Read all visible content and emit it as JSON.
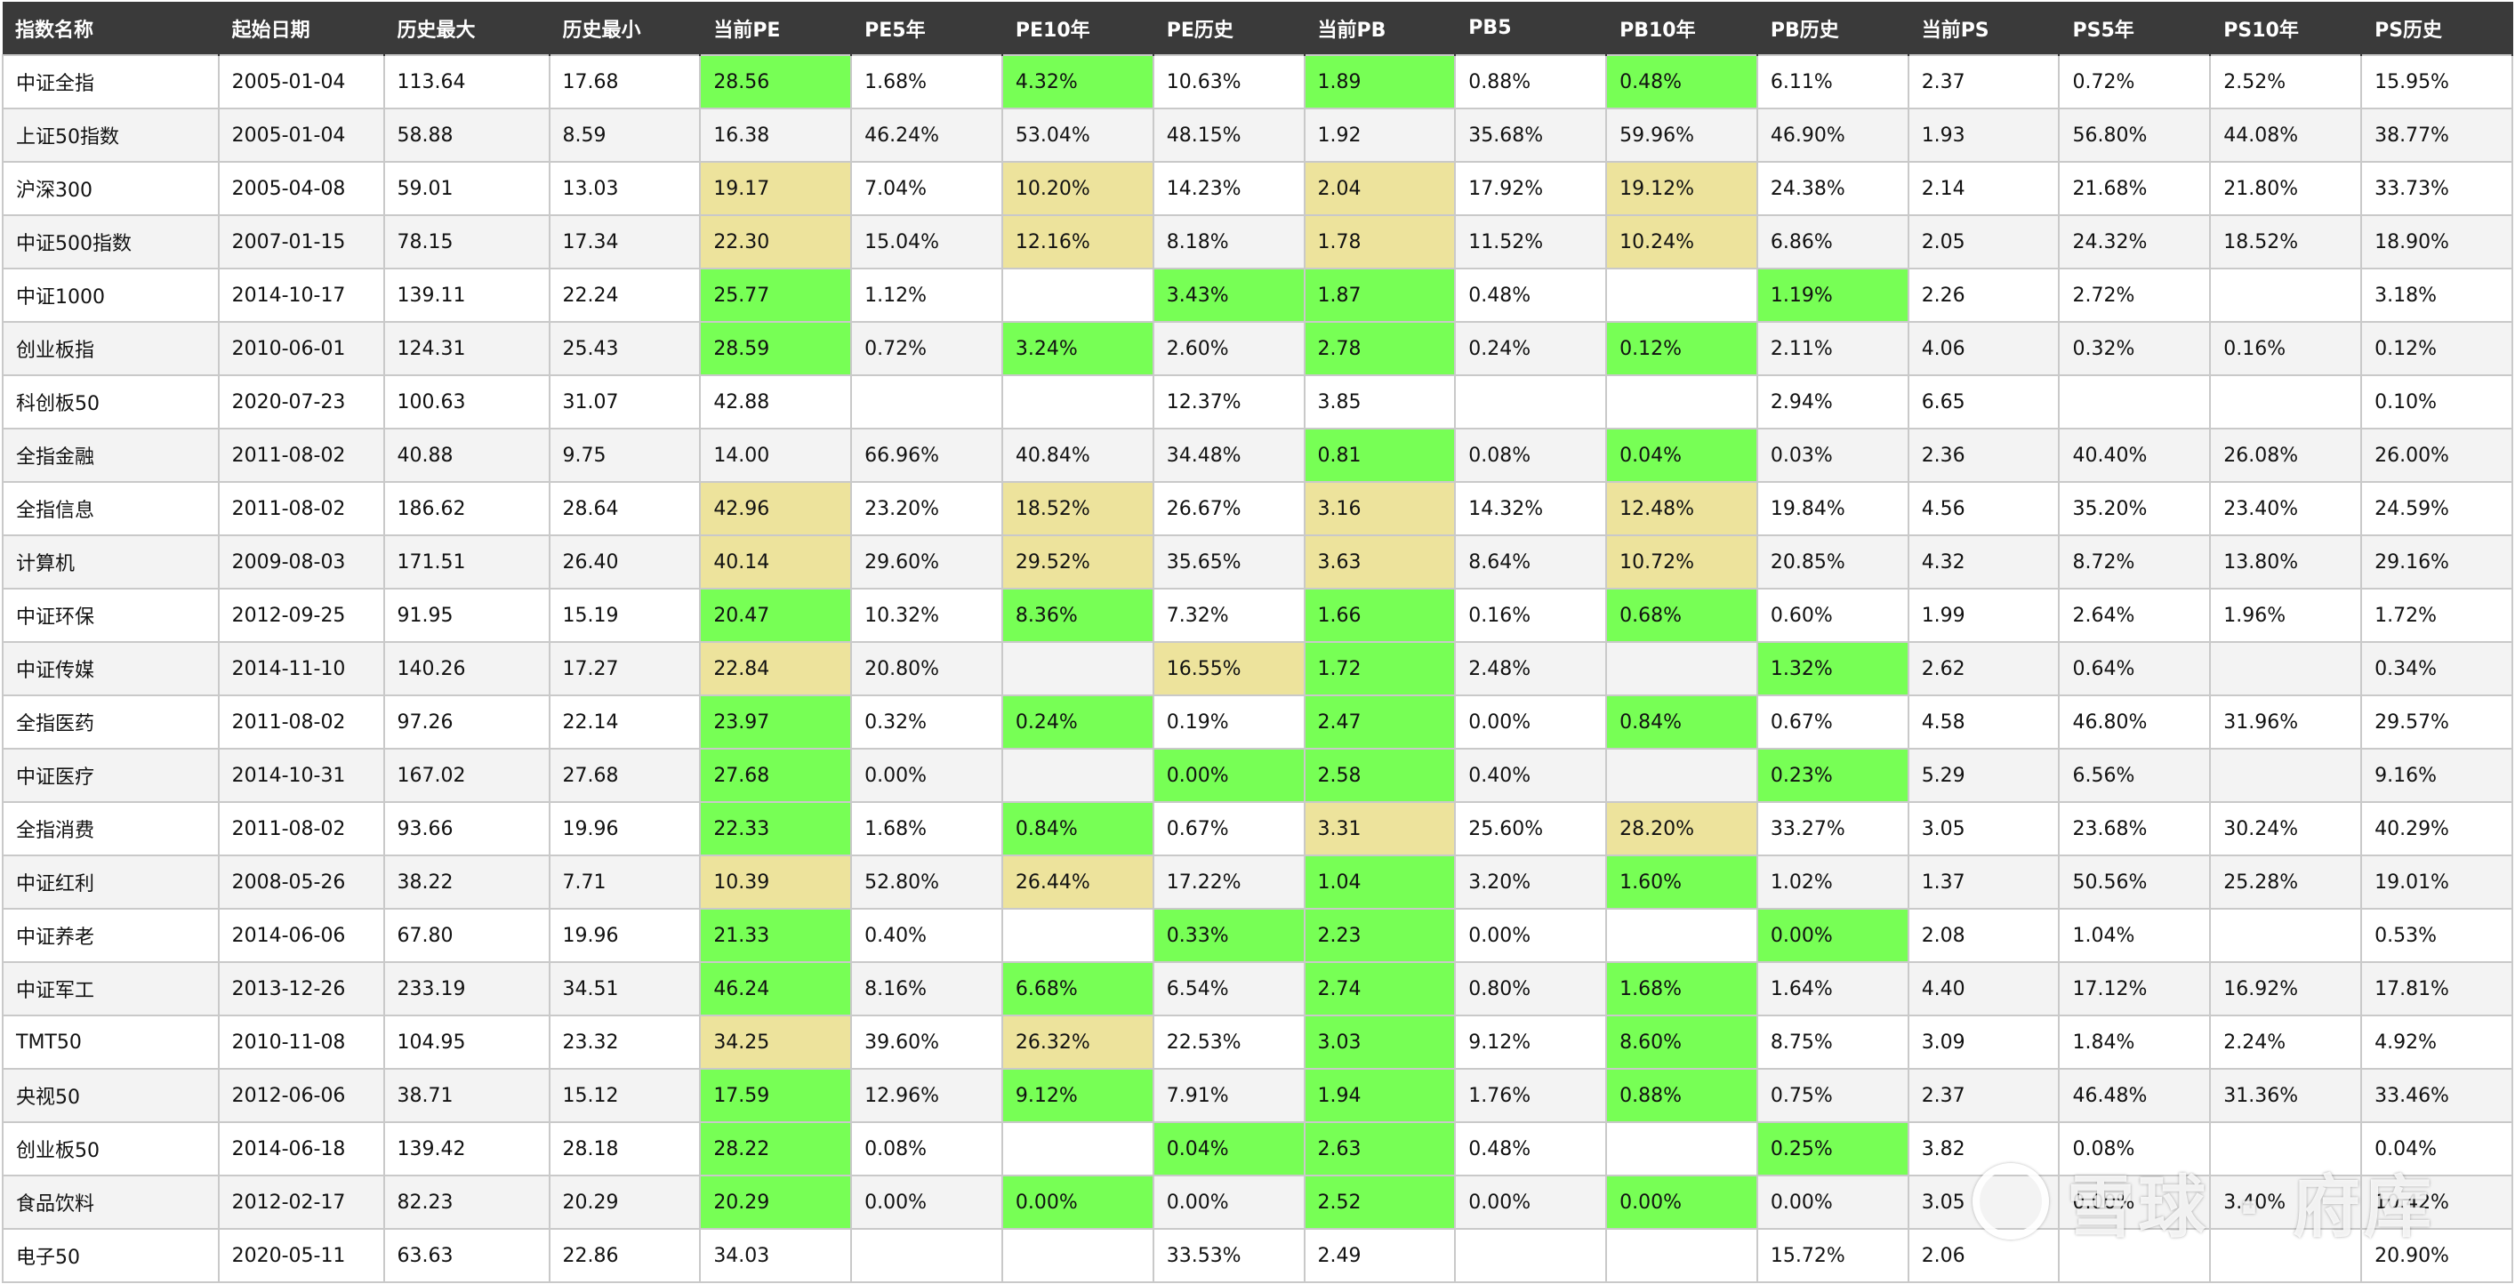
{
  "headers": [
    "指数名称",
    "起始日期",
    "历史最大",
    "历史最小",
    "当前PE",
    "PE5年",
    "PE10年",
    "PE历史",
    "当前PB",
    "PB5",
    "PB10年",
    "PB历史",
    "当前PS",
    "PS5年",
    "PS10年",
    "PS历史"
  ],
  "rows": [
    {
      "cells": [
        "中证全指",
        "2005-01-04",
        "113.64",
        "17.68",
        "28.56",
        "1.68%",
        "4.32%",
        "10.63%",
        "1.89",
        "0.88%",
        "0.48%",
        "6.11%",
        "2.37",
        "0.72%",
        "2.52%",
        "15.95%"
      ],
      "hl": {
        "4": "g",
        "6": "g",
        "8": "g",
        "10": "g"
      }
    },
    {
      "cells": [
        "上证50指数",
        "2005-01-04",
        "58.88",
        "8.59",
        "16.38",
        "46.24%",
        "53.04%",
        "48.15%",
        "1.92",
        "35.68%",
        "59.96%",
        "46.90%",
        "1.93",
        "56.80%",
        "44.08%",
        "38.77%"
      ],
      "hl": {}
    },
    {
      "cells": [
        "沪深300",
        "2005-04-08",
        "59.01",
        "13.03",
        "19.17",
        "7.04%",
        "10.20%",
        "14.23%",
        "2.04",
        "17.92%",
        "19.12%",
        "24.38%",
        "2.14",
        "21.68%",
        "21.80%",
        "33.73%"
      ],
      "hl": {
        "4": "y",
        "6": "y",
        "8": "y",
        "10": "y"
      }
    },
    {
      "cells": [
        "中证500指数",
        "2007-01-15",
        "78.15",
        "17.34",
        "22.30",
        "15.04%",
        "12.16%",
        "8.18%",
        "1.78",
        "11.52%",
        "10.24%",
        "6.86%",
        "2.05",
        "24.32%",
        "18.52%",
        "18.90%"
      ],
      "hl": {
        "4": "y",
        "6": "y",
        "8": "y",
        "10": "y"
      }
    },
    {
      "cells": [
        "中证1000",
        "2014-10-17",
        "139.11",
        "22.24",
        "25.77",
        "1.12%",
        "",
        "3.43%",
        "1.87",
        "0.48%",
        "",
        "1.19%",
        "2.26",
        "2.72%",
        "",
        "3.18%"
      ],
      "hl": {
        "4": "g",
        "7": "g",
        "8": "g",
        "11": "g"
      }
    },
    {
      "cells": [
        "创业板指",
        "2010-06-01",
        "124.31",
        "25.43",
        "28.59",
        "0.72%",
        "3.24%",
        "2.60%",
        "2.78",
        "0.24%",
        "0.12%",
        "2.11%",
        "4.06",
        "0.32%",
        "0.16%",
        "0.12%"
      ],
      "hl": {
        "4": "g",
        "6": "g",
        "8": "g",
        "10": "g"
      }
    },
    {
      "cells": [
        "科创板50",
        "2020-07-23",
        "100.63",
        "31.07",
        "42.88",
        "",
        "",
        "12.37%",
        "3.85",
        "",
        "",
        "2.94%",
        "6.65",
        "",
        "",
        "0.10%"
      ],
      "hl": {}
    },
    {
      "cells": [
        "全指金融",
        "2011-08-02",
        "40.88",
        "9.75",
        "14.00",
        "66.96%",
        "40.84%",
        "34.48%",
        "0.81",
        "0.08%",
        "0.04%",
        "0.03%",
        "2.36",
        "40.40%",
        "26.08%",
        "26.00%"
      ],
      "hl": {
        "8": "g",
        "10": "g"
      }
    },
    {
      "cells": [
        "全指信息",
        "2011-08-02",
        "186.62",
        "28.64",
        "42.96",
        "23.20%",
        "18.52%",
        "26.67%",
        "3.16",
        "14.32%",
        "12.48%",
        "19.84%",
        "4.56",
        "35.20%",
        "23.40%",
        "24.59%"
      ],
      "hl": {
        "4": "y",
        "6": "y",
        "8": "y",
        "10": "y"
      }
    },
    {
      "cells": [
        "计算机",
        "2009-08-03",
        "171.51",
        "26.40",
        "40.14",
        "29.60%",
        "29.52%",
        "35.65%",
        "3.63",
        "8.64%",
        "10.72%",
        "20.85%",
        "4.32",
        "8.72%",
        "13.80%",
        "29.16%"
      ],
      "hl": {
        "4": "y",
        "6": "y",
        "8": "y",
        "10": "y"
      }
    },
    {
      "cells": [
        "中证环保",
        "2012-09-25",
        "91.95",
        "15.19",
        "20.47",
        "10.32%",
        "8.36%",
        "7.32%",
        "1.66",
        "0.16%",
        "0.68%",
        "0.60%",
        "1.99",
        "2.64%",
        "1.96%",
        "1.72%"
      ],
      "hl": {
        "4": "g",
        "6": "g",
        "8": "g",
        "10": "g"
      }
    },
    {
      "cells": [
        "中证传媒",
        "2014-11-10",
        "140.26",
        "17.27",
        "22.84",
        "20.80%",
        "",
        "16.55%",
        "1.72",
        "2.48%",
        "",
        "1.32%",
        "2.62",
        "0.64%",
        "",
        "0.34%"
      ],
      "hl": {
        "4": "y",
        "7": "y",
        "8": "g",
        "11": "g"
      }
    },
    {
      "cells": [
        "全指医药",
        "2011-08-02",
        "97.26",
        "22.14",
        "23.97",
        "0.32%",
        "0.24%",
        "0.19%",
        "2.47",
        "0.00%",
        "0.84%",
        "0.67%",
        "4.58",
        "46.80%",
        "31.96%",
        "29.57%"
      ],
      "hl": {
        "4": "g",
        "6": "g",
        "8": "g",
        "10": "g"
      }
    },
    {
      "cells": [
        "中证医疗",
        "2014-10-31",
        "167.02",
        "27.68",
        "27.68",
        "0.00%",
        "",
        "0.00%",
        "2.58",
        "0.40%",
        "",
        "0.23%",
        "5.29",
        "6.56%",
        "",
        "9.16%"
      ],
      "hl": {
        "4": "g",
        "7": "g",
        "8": "g",
        "11": "g"
      }
    },
    {
      "cells": [
        "全指消费",
        "2011-08-02",
        "93.66",
        "19.96",
        "22.33",
        "1.68%",
        "0.84%",
        "0.67%",
        "3.31",
        "25.60%",
        "28.20%",
        "33.27%",
        "3.05",
        "23.68%",
        "30.24%",
        "40.29%"
      ],
      "hl": {
        "4": "g",
        "6": "g",
        "8": "y",
        "10": "y"
      }
    },
    {
      "cells": [
        "中证红利",
        "2008-05-26",
        "38.22",
        "7.71",
        "10.39",
        "52.80%",
        "26.44%",
        "17.22%",
        "1.04",
        "3.20%",
        "1.60%",
        "1.02%",
        "1.37",
        "50.56%",
        "25.28%",
        "19.01%"
      ],
      "hl": {
        "4": "y",
        "6": "y",
        "8": "g",
        "10": "g"
      }
    },
    {
      "cells": [
        "中证养老",
        "2014-06-06",
        "67.80",
        "19.96",
        "21.33",
        "0.40%",
        "",
        "0.33%",
        "2.23",
        "0.00%",
        "",
        "0.00%",
        "2.08",
        "1.04%",
        "",
        "0.53%"
      ],
      "hl": {
        "4": "g",
        "7": "g",
        "8": "g",
        "11": "g"
      }
    },
    {
      "cells": [
        "中证军工",
        "2013-12-26",
        "233.19",
        "34.51",
        "46.24",
        "8.16%",
        "6.68%",
        "6.54%",
        "2.74",
        "0.80%",
        "1.68%",
        "1.64%",
        "4.40",
        "17.12%",
        "16.92%",
        "17.81%"
      ],
      "hl": {
        "4": "g",
        "6": "g",
        "8": "g",
        "10": "g"
      }
    },
    {
      "cells": [
        "TMT50",
        "2010-11-08",
        "104.95",
        "23.32",
        "34.25",
        "39.60%",
        "26.32%",
        "22.53%",
        "3.03",
        "9.12%",
        "8.60%",
        "8.75%",
        "3.09",
        "1.84%",
        "2.24%",
        "4.92%"
      ],
      "hl": {
        "4": "y",
        "6": "y",
        "8": "g",
        "10": "g"
      }
    },
    {
      "cells": [
        "央视50",
        "2012-06-06",
        "38.71",
        "15.12",
        "17.59",
        "12.96%",
        "9.12%",
        "7.91%",
        "1.94",
        "1.76%",
        "0.88%",
        "0.75%",
        "2.37",
        "46.48%",
        "31.36%",
        "33.46%"
      ],
      "hl": {
        "4": "g",
        "6": "g",
        "8": "g",
        "10": "g"
      }
    },
    {
      "cells": [
        "创业板50",
        "2014-06-18",
        "139.42",
        "28.18",
        "28.22",
        "0.08%",
        "",
        "0.04%",
        "2.63",
        "0.48%",
        "",
        "0.25%",
        "3.82",
        "0.08%",
        "",
        "0.04%"
      ],
      "hl": {
        "4": "g",
        "7": "g",
        "8": "g",
        "11": "g"
      }
    },
    {
      "cells": [
        "食品饮料",
        "2012-02-17",
        "82.23",
        "20.29",
        "20.29",
        "0.00%",
        "0.00%",
        "0.00%",
        "2.52",
        "0.00%",
        "0.00%",
        "0.00%",
        "3.05",
        "0.00%",
        "3.40%",
        "10.42%"
      ],
      "hl": {
        "4": "g",
        "6": "g",
        "8": "g",
        "10": "g"
      }
    },
    {
      "cells": [
        "电子50",
        "2020-05-11",
        "63.63",
        "22.86",
        "34.03",
        "",
        "",
        "33.53%",
        "2.49",
        "",
        "",
        "15.72%",
        "2.06",
        "",
        "",
        "20.90%"
      ],
      "hl": {}
    }
  ],
  "watermark": "雪球 · 府库",
  "colors": {
    "header_bg": "#3a3a3a",
    "highlight_green": "#77ff55",
    "highlight_yellow": "#ede39c",
    "row_alt": "#f3f3f3"
  }
}
